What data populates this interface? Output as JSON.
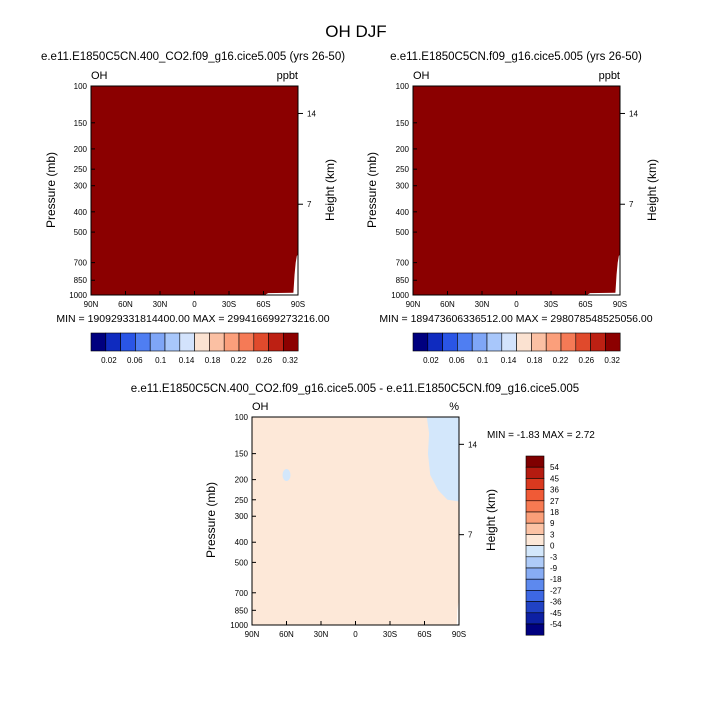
{
  "figure": {
    "title": "OH DJF"
  },
  "lat_labels": [
    "90N",
    "60N",
    "30N",
    "0",
    "30S",
    "60S",
    "90S"
  ],
  "lat_values": [
    90,
    60,
    30,
    0,
    -30,
    -60,
    -90
  ],
  "pressure_ticks": [
    100,
    150,
    200,
    250,
    300,
    400,
    500,
    700,
    850,
    1000
  ],
  "height_ticks": [
    14,
    7
  ],
  "colors": {
    "dark_red": "#8b0000",
    "pale_peach": "#fde8d8",
    "light_blue": "#d3e7fb",
    "white": "#ffffff"
  },
  "panels": [
    {
      "title": "e.e11.E1850C5CN.400_CO2.f09_g16.cice5.005 (yrs 26-50)",
      "left_label": "OH",
      "right_label": "ppbt",
      "ylabel": "Pressure (mb)",
      "ylabel_right": "Height (km)",
      "stats": "MIN = 190929331814400.00   MAX = 299416699273216.00",
      "colorbar_labels": [
        "0.02",
        "0.06",
        "0.1",
        "0.14",
        "0.18",
        "0.22",
        "0.26",
        "0.32"
      ]
    },
    {
      "title": "e.e11.E1850C5CN.f09_g16.cice5.005 (yrs 26-50)",
      "left_label": "OH",
      "right_label": "ppbt",
      "ylabel": "Pressure (mb)",
      "ylabel_right": "Height (km)",
      "stats": "MIN = 189473606336512.00   MAX = 298078548525056.00",
      "colorbar_labels": [
        "0.02",
        "0.06",
        "0.1",
        "0.14",
        "0.18",
        "0.22",
        "0.26",
        "0.32"
      ]
    },
    {
      "title": "e.e11.E1850C5CN.400_CO2.f09_g16.cice5.005 - e.e11.E1850C5CN.f09_g16.cice5.005",
      "left_label": "OH",
      "right_label": "%",
      "ylabel": "Pressure (mb)",
      "ylabel_right": "Height (km)",
      "stats": "MIN =  -1.83   MAX =   2.72",
      "colorbar_labels": [
        "54",
        "45",
        "36",
        "27",
        "18",
        "9",
        "3",
        "0",
        "-3",
        "-9",
        "-18",
        "-27",
        "-36",
        "-45",
        "-54"
      ]
    }
  ],
  "chart_data": [
    {
      "type": "heatmap",
      "title": "e.e11.E1850C5CN.400_CO2.f09_g16.cice5.005 (yrs 26-50)",
      "variable": "OH",
      "units": "ppbt",
      "xlabel": "",
      "ylabel": "Pressure (mb)",
      "ylabel_right": "Height (km)",
      "x": [
        "90N",
        "60N",
        "30N",
        "0",
        "30S",
        "60S",
        "90S"
      ],
      "xlim": [
        90,
        -90
      ],
      "y_ticks": [
        100,
        150,
        200,
        250,
        300,
        400,
        500,
        700,
        850,
        1000
      ],
      "ylim": [
        100,
        1000
      ],
      "y_scale": "log",
      "colorbar_levels": [
        0.02,
        0.06,
        0.1,
        0.14,
        0.18,
        0.22,
        0.26,
        0.32
      ],
      "min": "190929331814400.00",
      "max": "299416699273216.00",
      "fill": "entire field above the top colorbar level (dark red); small unfilled gap near 90S below ~650 mb"
    },
    {
      "type": "heatmap",
      "title": "e.e11.E1850C5CN.f09_g16.cice5.005 (yrs 26-50)",
      "variable": "OH",
      "units": "ppbt",
      "xlabel": "",
      "ylabel": "Pressure (mb)",
      "ylabel_right": "Height (km)",
      "x": [
        "90N",
        "60N",
        "30N",
        "0",
        "30S",
        "60S",
        "90S"
      ],
      "xlim": [
        90,
        -90
      ],
      "y_ticks": [
        100,
        150,
        200,
        250,
        300,
        400,
        500,
        700,
        850,
        1000
      ],
      "ylim": [
        100,
        1000
      ],
      "y_scale": "log",
      "colorbar_levels": [
        0.02,
        0.06,
        0.1,
        0.14,
        0.18,
        0.22,
        0.26,
        0.32
      ],
      "min": "189473606336512.00",
      "max": "298078548525056.00",
      "fill": "entire field above the top colorbar level (dark red); small unfilled gap near 90S below ~650 mb"
    },
    {
      "type": "heatmap",
      "title": "e.e11.E1850C5CN.400_CO2.f09_g16.cice5.005 - e.e11.E1850C5CN.f09_g16.cice5.005",
      "variable": "OH",
      "units": "%",
      "xlabel": "",
      "ylabel": "Pressure (mb)",
      "ylabel_right": "Height (km)",
      "x": [
        "90N",
        "60N",
        "30N",
        "0",
        "30S",
        "60S",
        "90S"
      ],
      "xlim": [
        90,
        -90
      ],
      "y_ticks": [
        100,
        150,
        200,
        250,
        300,
        400,
        500,
        700,
        850,
        1000
      ],
      "ylim": [
        100,
        1000
      ],
      "y_scale": "log",
      "colorbar_levels": [
        -54,
        -45,
        -36,
        -27,
        -18,
        -9,
        -3,
        0,
        3,
        9,
        18,
        27,
        36,
        45,
        54
      ],
      "min": -1.83,
      "max": 2.72,
      "fill": "mostly 0 to 3 (pale peach); -3 to 0 (light blue) over 60S-90S above ~260 mb and a small patch near 60N around 180-200 mb"
    }
  ]
}
